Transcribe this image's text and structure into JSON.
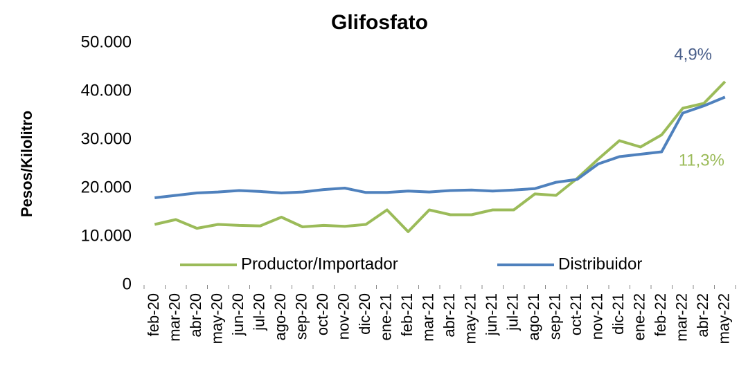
{
  "chart_data": {
    "type": "line",
    "title": "Glifosfato",
    "y_label": "Pesos/Kilolitro",
    "categories": [
      "feb-20",
      "mar-20",
      "abr-20",
      "may-20",
      "jun-20",
      "jul-20",
      "ago-20",
      "sep-20",
      "oct-20",
      "nov-20",
      "dic-20",
      "ene-21",
      "feb-21",
      "mar-21",
      "abr-21",
      "may-21",
      "jun-21",
      "jul-21",
      "ago-21",
      "sep-21",
      "oct-21",
      "nov-21",
      "dic-21",
      "ene-22",
      "feb-22",
      "mar-22",
      "abr-22",
      "may-22"
    ],
    "series": [
      {
        "name": "Productor/Importador",
        "color": "#9bbb59",
        "values": [
          12500,
          13500,
          11700,
          12500,
          12300,
          12200,
          14000,
          12000,
          12300,
          12100,
          12500,
          15500,
          11000,
          15500,
          14500,
          14500,
          15500,
          15500,
          18800,
          18500,
          22000,
          26000,
          29800,
          28500,
          31000,
          36500,
          37500,
          42000
        ]
      },
      {
        "name": "Distribuidor",
        "color": "#4f81bd",
        "values": [
          18000,
          18500,
          19000,
          19200,
          19500,
          19300,
          19000,
          19200,
          19700,
          20000,
          19100,
          19100,
          19400,
          19200,
          19500,
          19600,
          19400,
          19600,
          19900,
          21200,
          21800,
          25000,
          26500,
          27000,
          27500,
          35500,
          37000,
          38800
        ]
      }
    ],
    "annotations": [
      {
        "text": "4,9%",
        "color": "#4a5f8a"
      },
      {
        "text": "11,3%",
        "color": "#9bbb59"
      }
    ],
    "ylim": [
      0,
      50000
    ],
    "yticks": [
      0,
      {
        "value": 10000,
        "label": "10.000"
      },
      {
        "value": 20000,
        "label": "20.000"
      },
      {
        "value": 30000,
        "label": "30.000"
      },
      {
        "value": 40000,
        "label": "40.000"
      },
      {
        "value": 50000,
        "label": "50.000"
      }
    ],
    "legend": "bottom",
    "grid": false
  }
}
